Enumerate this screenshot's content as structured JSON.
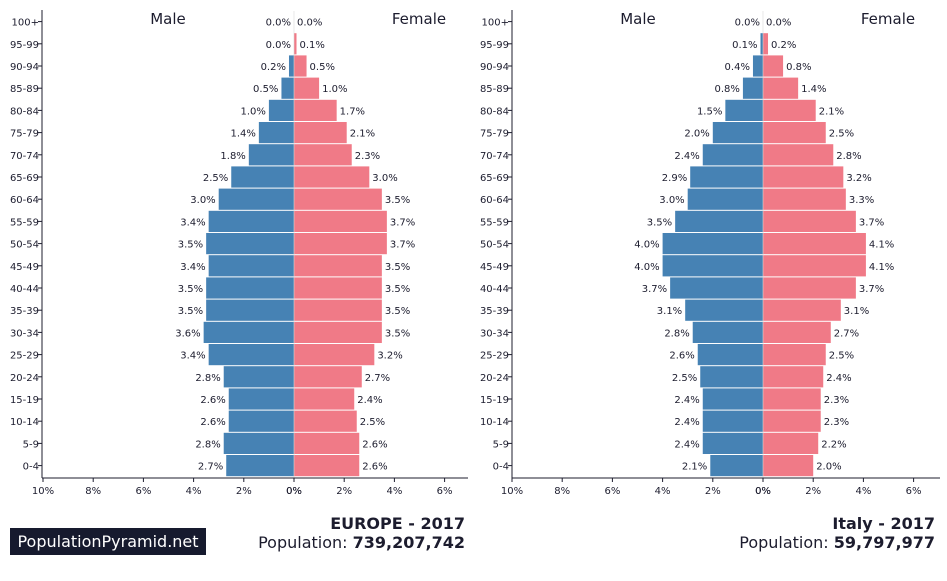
{
  "brand": "PopulationPyramid.net",
  "colors": {
    "male": "#4682b4",
    "female": "#f07a87"
  },
  "chart_data": [
    {
      "type": "bar",
      "orientation": "horizontal-pyramid",
      "region": "EUROPE",
      "year": "2017",
      "population_label": "Population:",
      "population": "739,207,742",
      "male_label": "Male",
      "female_label": "Female",
      "categories": [
        "0-4",
        "5-9",
        "10-14",
        "15-19",
        "20-24",
        "25-29",
        "30-34",
        "35-39",
        "40-44",
        "45-49",
        "50-54",
        "55-59",
        "60-64",
        "65-69",
        "70-74",
        "75-79",
        "80-84",
        "85-89",
        "90-94",
        "95-99",
        "100+"
      ],
      "series": [
        {
          "name": "Male",
          "values": [
            2.7,
            2.8,
            2.6,
            2.6,
            2.8,
            3.4,
            3.6,
            3.5,
            3.5,
            3.4,
            3.5,
            3.4,
            3.0,
            2.5,
            1.8,
            1.4,
            1.0,
            0.5,
            0.2,
            0.0,
            0.0
          ]
        },
        {
          "name": "Female",
          "values": [
            2.6,
            2.6,
            2.5,
            2.4,
            2.7,
            3.2,
            3.5,
            3.5,
            3.5,
            3.5,
            3.7,
            3.7,
            3.5,
            3.0,
            2.3,
            2.1,
            1.7,
            1.0,
            0.5,
            0.1,
            0.0
          ]
        }
      ],
      "xticks_left": [
        "10%",
        "8%",
        "6%",
        "4%",
        "2%",
        "0%"
      ],
      "xticks_right": [
        "0%",
        "2%",
        "4%",
        "6%"
      ],
      "xlim": [
        -10,
        7
      ]
    },
    {
      "type": "bar",
      "orientation": "horizontal-pyramid",
      "region": "Italy",
      "year": "2017",
      "population_label": "Population:",
      "population": "59,797,977",
      "male_label": "Male",
      "female_label": "Female",
      "categories": [
        "0-4",
        "5-9",
        "10-14",
        "15-19",
        "20-24",
        "25-29",
        "30-34",
        "35-39",
        "40-44",
        "45-49",
        "50-54",
        "55-59",
        "60-64",
        "65-69",
        "70-74",
        "75-79",
        "80-84",
        "85-89",
        "90-94",
        "95-99",
        "100+"
      ],
      "series": [
        {
          "name": "Male",
          "values": [
            2.1,
            2.4,
            2.4,
            2.4,
            2.5,
            2.6,
            2.8,
            3.1,
            3.7,
            4.0,
            4.0,
            3.5,
            3.0,
            2.9,
            2.4,
            2.0,
            1.5,
            0.8,
            0.4,
            0.1,
            0.0
          ]
        },
        {
          "name": "Female",
          "values": [
            2.0,
            2.2,
            2.3,
            2.3,
            2.4,
            2.5,
            2.7,
            3.1,
            3.7,
            4.1,
            4.1,
            3.7,
            3.3,
            3.2,
            2.8,
            2.5,
            2.1,
            1.4,
            0.8,
            0.2,
            0.0
          ]
        }
      ],
      "xticks_left": [
        "10%",
        "8%",
        "6%",
        "4%",
        "2%",
        "0%"
      ],
      "xticks_right": [
        "0%",
        "2%",
        "4%",
        "6%"
      ],
      "xlim": [
        -10,
        7
      ]
    }
  ]
}
